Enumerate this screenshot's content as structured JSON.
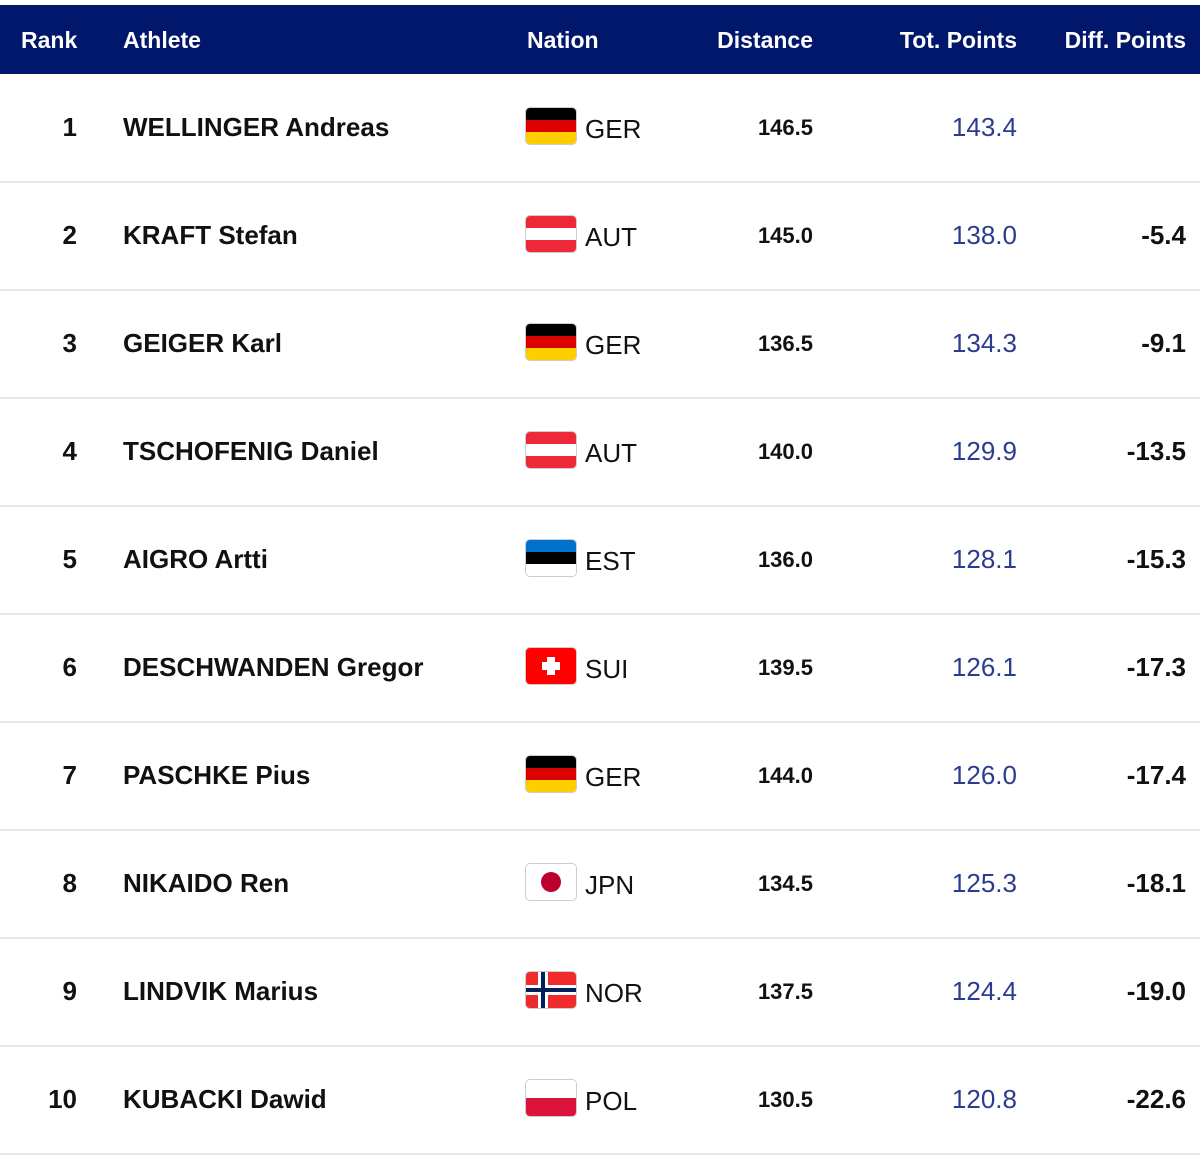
{
  "header": {
    "rank": "Rank",
    "athlete": "Athlete",
    "nation": "Nation",
    "distance": "Distance",
    "tot_points": "Tot. Points",
    "diff_points": "Diff. Points"
  },
  "colors": {
    "header_bg": "#01176b",
    "points": "#2b3c8f"
  },
  "rows": [
    {
      "rank": "1",
      "athlete": "WELLINGER Andreas",
      "nation": "GER",
      "distance": "146.5",
      "tot": "143.4",
      "diff": ""
    },
    {
      "rank": "2",
      "athlete": "KRAFT Stefan",
      "nation": "AUT",
      "distance": "145.0",
      "tot": "138.0",
      "diff": "-5.4"
    },
    {
      "rank": "3",
      "athlete": "GEIGER Karl",
      "nation": "GER",
      "distance": "136.5",
      "tot": "134.3",
      "diff": "-9.1"
    },
    {
      "rank": "4",
      "athlete": "TSCHOFENIG Daniel",
      "nation": "AUT",
      "distance": "140.0",
      "tot": "129.9",
      "diff": "-13.5"
    },
    {
      "rank": "5",
      "athlete": "AIGRO Artti",
      "nation": "EST",
      "distance": "136.0",
      "tot": "128.1",
      "diff": "-15.3"
    },
    {
      "rank": "6",
      "athlete": "DESCHWANDEN Gregor",
      "nation": "SUI",
      "distance": "139.5",
      "tot": "126.1",
      "diff": "-17.3"
    },
    {
      "rank": "7",
      "athlete": "PASCHKE Pius",
      "nation": "GER",
      "distance": "144.0",
      "tot": "126.0",
      "diff": "-17.4"
    },
    {
      "rank": "8",
      "athlete": "NIKAIDO Ren",
      "nation": "JPN",
      "distance": "134.5",
      "tot": "125.3",
      "diff": "-18.1"
    },
    {
      "rank": "9",
      "athlete": "LINDVIK Marius",
      "nation": "NOR",
      "distance": "137.5",
      "tot": "124.4",
      "diff": "-19.0"
    },
    {
      "rank": "10",
      "athlete": "KUBACKI Dawid",
      "nation": "POL",
      "distance": "130.5",
      "tot": "120.8",
      "diff": "-22.6"
    }
  ]
}
